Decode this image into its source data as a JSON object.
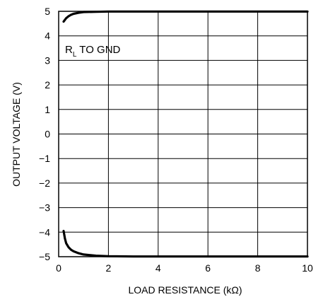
{
  "chart_data": {
    "type": "line",
    "xlabel": "LOAD RESISTANCE (kΩ)",
    "ylabel": "OUTPUT VOLTAGE (V)",
    "xlim": [
      0,
      10
    ],
    "ylim": [
      -5,
      5
    ],
    "x_ticks": [
      0,
      2,
      4,
      6,
      8,
      10
    ],
    "y_ticks": [
      5,
      4,
      3,
      2,
      1,
      0,
      -1,
      -2,
      -3,
      -4,
      -5
    ],
    "x_tick_labels": [
      "0",
      "2",
      "4",
      "6",
      "8",
      "10"
    ],
    "y_tick_labels": [
      "5",
      "4",
      "3",
      "2",
      "1",
      "0",
      "−1",
      "−2",
      "−3",
      "−4",
      "−5"
    ],
    "grid": true,
    "annotation": {
      "main": "R",
      "subscript": "L",
      "rest": " TO GND"
    },
    "series": [
      {
        "x": [
          0.2,
          0.3,
          0.4,
          0.5,
          0.6,
          0.8,
          1.0,
          1.5,
          2,
          3,
          4,
          6,
          8,
          10
        ],
        "values": [
          4.58,
          4.72,
          4.8,
          4.86,
          4.9,
          4.94,
          4.97,
          4.98,
          4.99,
          4.99,
          4.99,
          4.99,
          4.99,
          4.99
        ]
      },
      {
        "x": [
          0.2,
          0.25,
          0.3,
          0.4,
          0.5,
          0.6,
          0.8,
          1.0,
          1.5,
          2,
          3,
          4,
          6,
          8,
          10
        ],
        "values": [
          -3.95,
          -4.25,
          -4.45,
          -4.62,
          -4.72,
          -4.78,
          -4.86,
          -4.91,
          -4.96,
          -4.98,
          -4.99,
          -4.99,
          -4.99,
          -4.99,
          -4.99
        ]
      }
    ],
    "line_color": "#000000",
    "grid_color": "#000000"
  }
}
